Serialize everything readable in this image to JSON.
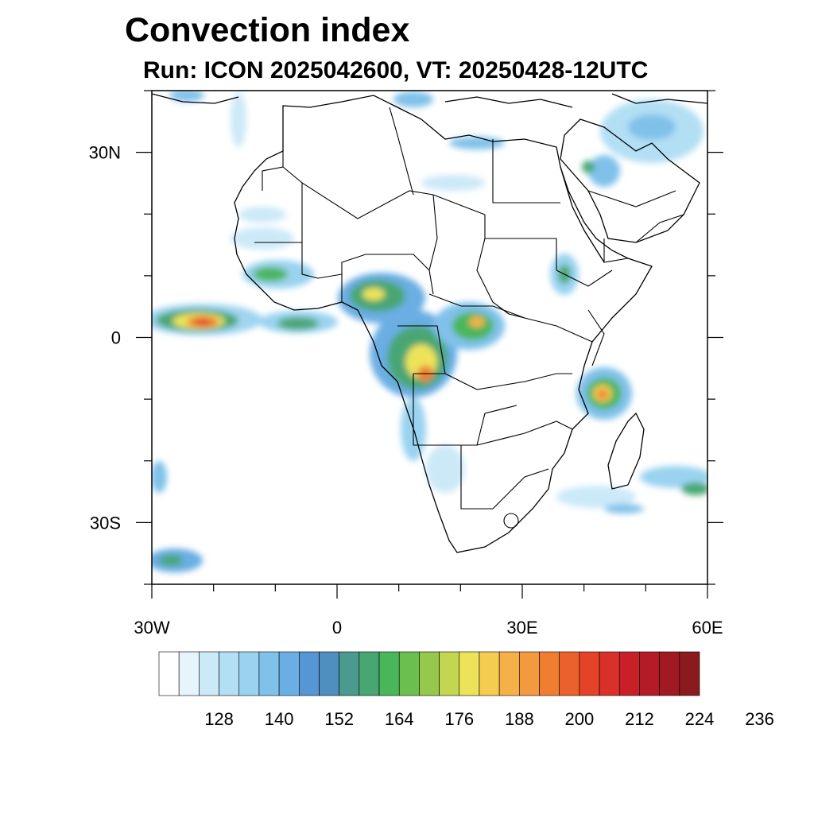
{
  "title": "Convection index",
  "subtitle": "Run: ICON 2025042600,  VT: 20250428-12UTC",
  "map": {
    "lon_range": [
      -30,
      60
    ],
    "lat_range": [
      -40,
      40
    ],
    "lon_ticks": [
      {
        "value": -30,
        "label": "30W"
      },
      {
        "value": 0,
        "label": "0"
      },
      {
        "value": 30,
        "label": "30E"
      },
      {
        "value": 60,
        "label": "60E"
      }
    ],
    "lat_ticks": [
      {
        "value": 30,
        "label": "30N"
      },
      {
        "value": 0,
        "label": "0"
      },
      {
        "value": -30,
        "label": "30S"
      }
    ],
    "field": "convection index",
    "main_maxima": [
      "tropical Atlantic near 3N 25W",
      "Congo basin / Gulf of Guinea",
      "East African coast near 8S 42E"
    ]
  },
  "colorbar": {
    "colors": [
      "#ffffff",
      "#e6f4fc",
      "#cce9f8",
      "#b2dff4",
      "#9ad3f0",
      "#80c1ea",
      "#6aaee3",
      "#5596d3",
      "#4f8fbf",
      "#4a9a8e",
      "#48a673",
      "#49b65a",
      "#6bbf4f",
      "#95c84c",
      "#c2d650",
      "#ede35a",
      "#f5cb50",
      "#f5b148",
      "#f39a3e",
      "#ef7e30",
      "#eb612b",
      "#e54329",
      "#d93129",
      "#c82028",
      "#b51a27",
      "#a11922",
      "#8b1a1c"
    ],
    "labels": [
      "128",
      "140",
      "152",
      "164",
      "176",
      "188",
      "200",
      "212",
      "224",
      "236"
    ]
  }
}
